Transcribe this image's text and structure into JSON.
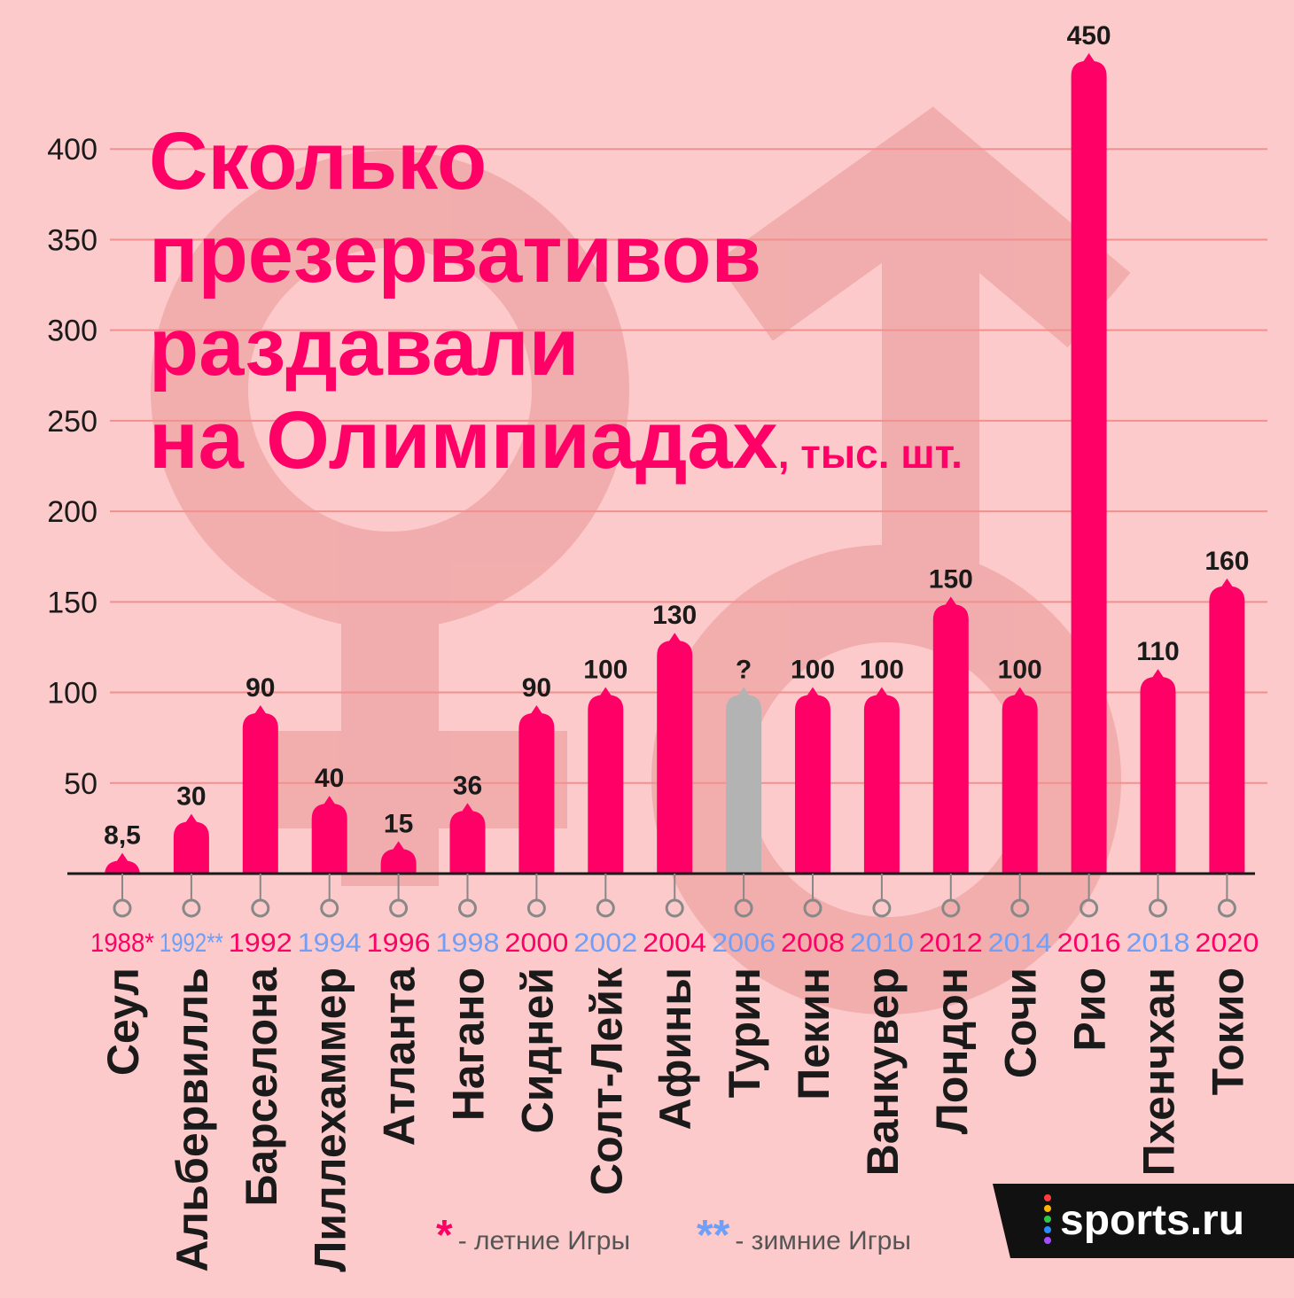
{
  "header": {
    "title_lines": [
      "Сколько",
      "презервативов",
      "раздавали",
      "на Олимпиадах"
    ],
    "unit": ", тыс. шт."
  },
  "legend": {
    "summer_mark": "*",
    "summer_label": "- летние  Игры",
    "winter_mark": "**",
    "winter_label": "- зимние Игры"
  },
  "logo": {
    "text": "sports.ru"
  },
  "colors": {
    "background": "#fccaca",
    "bar": "#ff0066",
    "unknown_bar": "#b3b3b3",
    "summer": "#ff0066",
    "winter": "#6f9ff7",
    "gridline": "#f28f8f",
    "watermark": "#f0a8a8",
    "logo_bg": "#111111"
  },
  "chart_data": {
    "type": "bar",
    "ylim": [
      0,
      450
    ],
    "y_ticks": [
      "50",
      "100",
      "150",
      "200",
      "250",
      "300",
      "350",
      "400"
    ],
    "grid": true,
    "bars": [
      {
        "city": "Сеул",
        "year": "1988*",
        "season": "summer",
        "value": 8.5,
        "label": "8,5"
      },
      {
        "city": "Альбервилль",
        "year": "1992**",
        "season": "winter",
        "value": 30,
        "label": "30"
      },
      {
        "city": "Барселона",
        "year": "1992",
        "season": "summer",
        "value": 90,
        "label": "90"
      },
      {
        "city": "Лиллехаммер",
        "year": "1994",
        "season": "winter",
        "value": 40,
        "label": "40"
      },
      {
        "city": "Атланта",
        "year": "1996",
        "season": "summer",
        "value": 15,
        "label": "15"
      },
      {
        "city": "Нагано",
        "year": "1998",
        "season": "winter",
        "value": 36,
        "label": "36"
      },
      {
        "city": "Сидней",
        "year": "2000",
        "season": "summer",
        "value": 90,
        "label": "90"
      },
      {
        "city": "Солт-Лейк",
        "year": "2002",
        "season": "winter",
        "value": 100,
        "label": "100"
      },
      {
        "city": "Афины",
        "year": "2004",
        "season": "summer",
        "value": 130,
        "label": "130"
      },
      {
        "city": "Турин",
        "year": "2006",
        "season": "winter",
        "value": 100,
        "label": "?",
        "unknown": true
      },
      {
        "city": "Пекин",
        "year": "2008",
        "season": "summer",
        "value": 100,
        "label": "100"
      },
      {
        "city": "Ванкувер",
        "year": "2010",
        "season": "winter",
        "value": 100,
        "label": "100"
      },
      {
        "city": "Лондон",
        "year": "2012",
        "season": "summer",
        "value": 150,
        "label": "150"
      },
      {
        "city": "Сочи",
        "year": "2014",
        "season": "winter",
        "value": 100,
        "label": "100"
      },
      {
        "city": "Рио",
        "year": "2016",
        "season": "summer",
        "value": 450,
        "label": "450"
      },
      {
        "city": "Пхенчхан",
        "year": "2018",
        "season": "winter",
        "value": 110,
        "label": "110"
      },
      {
        "city": "Токио",
        "year": "2020",
        "season": "summer",
        "value": 160,
        "label": "160"
      }
    ]
  }
}
